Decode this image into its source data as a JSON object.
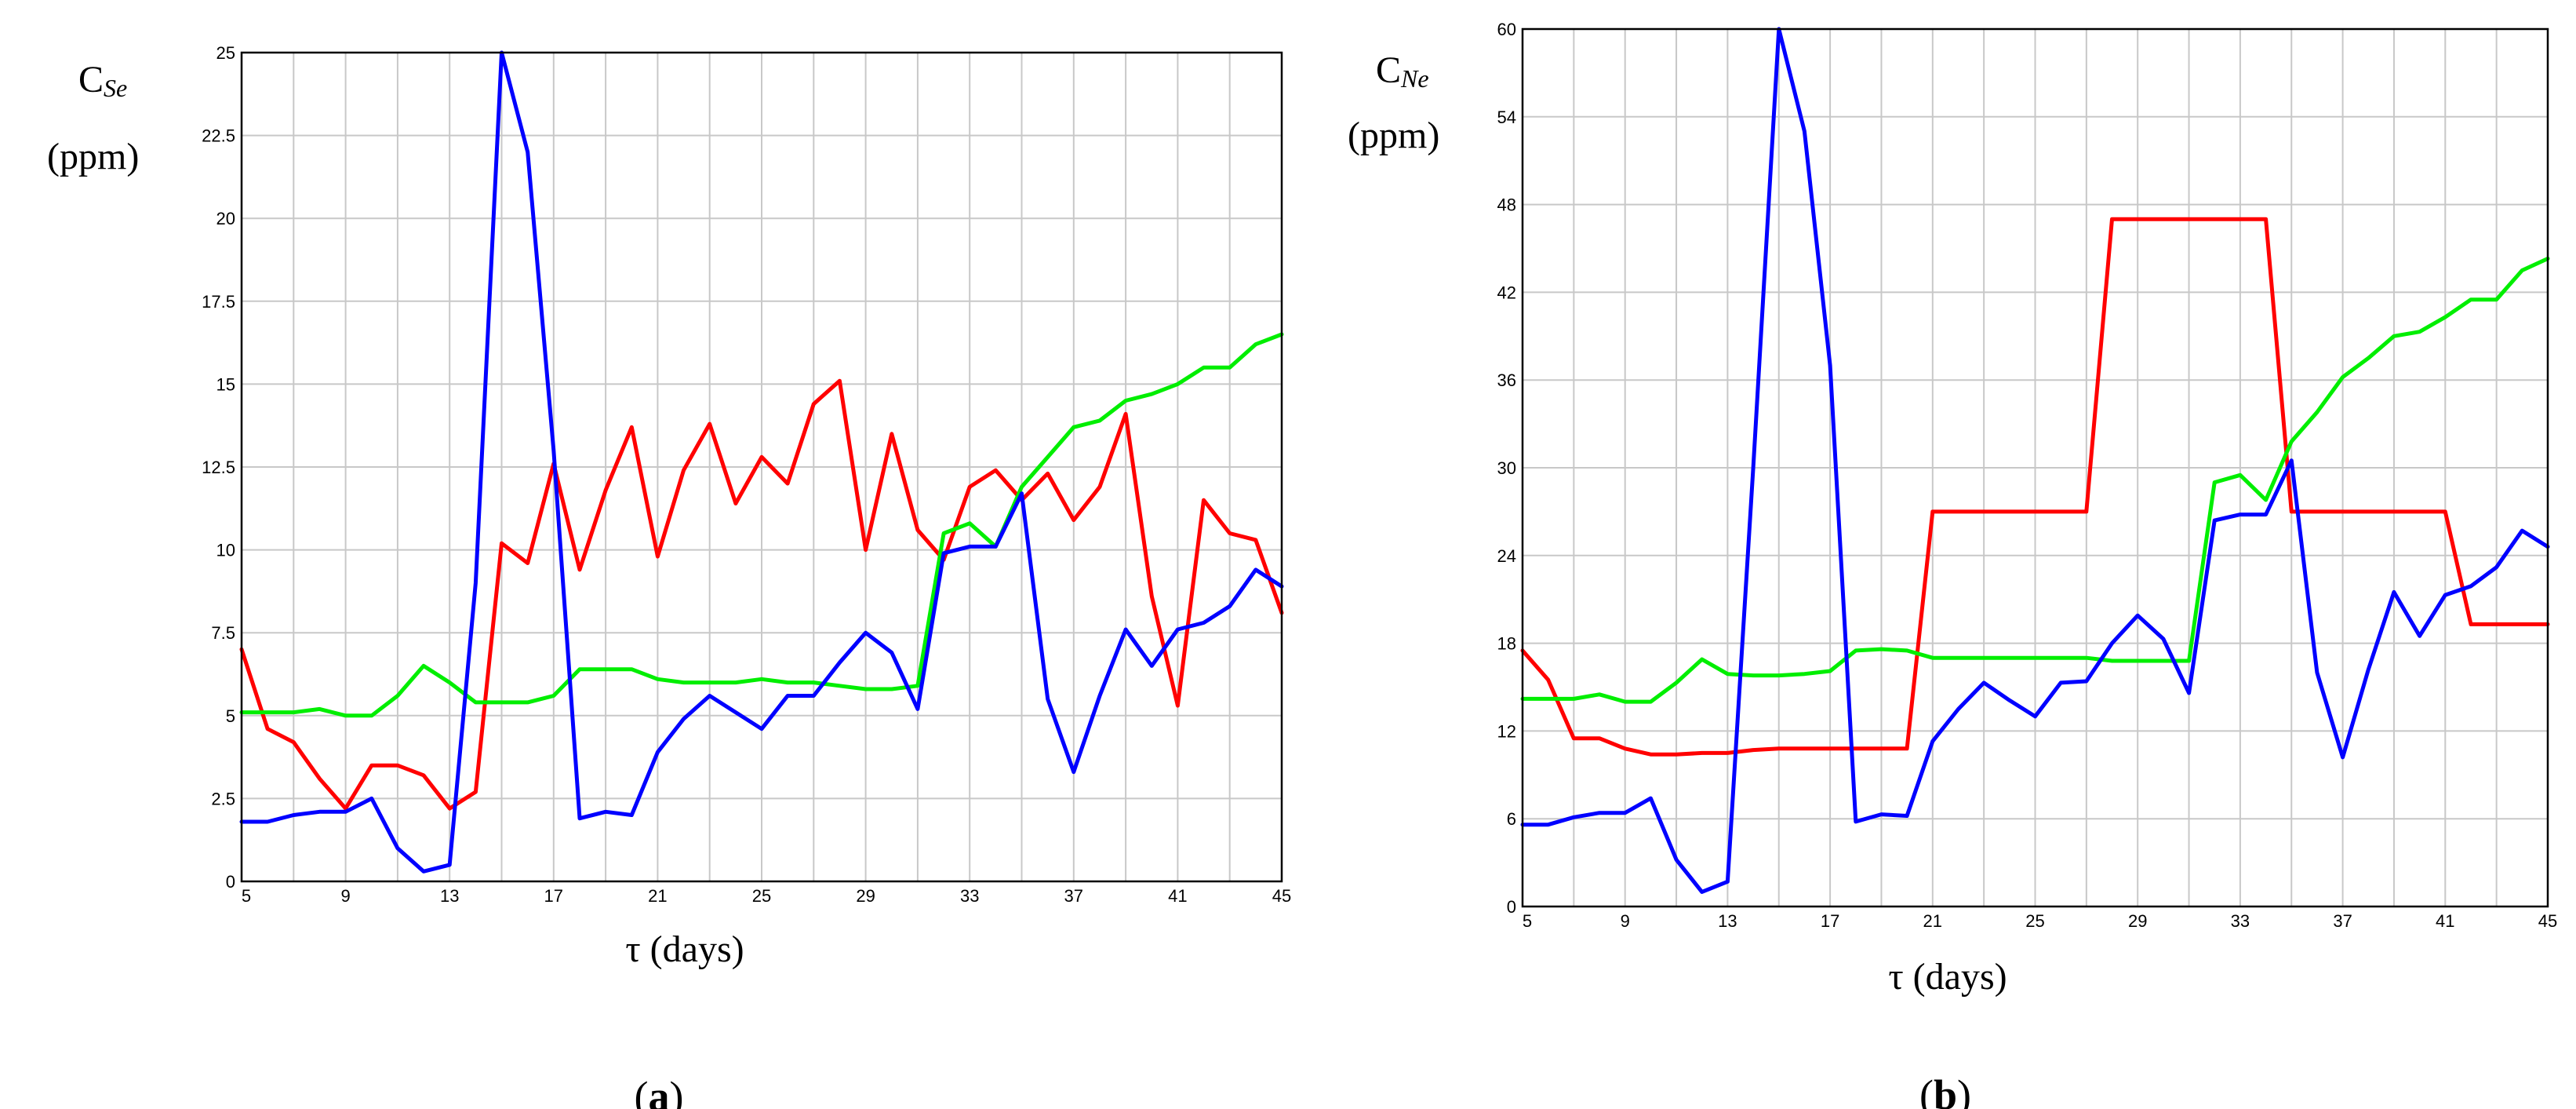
{
  "chart_data": [
    {
      "type": "line",
      "panel_label": "a",
      "ylabel_main": "C",
      "ylabel_sub": "Se",
      "ylabel_unit": "(ppm)",
      "xlabel": "τ (days)",
      "xlim": [
        5,
        45
      ],
      "ylim": [
        0,
        25
      ],
      "x_ticks": [
        "5",
        "9",
        "13",
        "17",
        "21",
        "25",
        "29",
        "33",
        "37",
        "41",
        "45"
      ],
      "y_ticks": [
        "0",
        "2.5",
        "5",
        "7.5",
        "10",
        "12.5",
        "15",
        "17.5",
        "20",
        "22.5",
        "25"
      ],
      "x_tick_values": [
        5,
        9,
        13,
        17,
        21,
        25,
        29,
        33,
        37,
        41,
        45
      ],
      "y_tick_values": [
        0,
        2.5,
        5,
        7.5,
        10,
        12.5,
        15,
        17.5,
        20,
        22.5,
        25
      ],
      "grid": true,
      "series": [
        {
          "color": "#ff0000",
          "x": [
            5,
            6,
            7,
            8,
            9,
            10,
            11,
            12,
            13,
            14,
            15,
            16,
            17,
            18,
            19,
            20,
            21,
            22,
            23,
            24,
            25,
            26,
            27,
            28,
            29,
            30,
            31,
            32,
            33,
            34,
            35,
            36,
            37,
            38,
            39,
            40,
            41,
            42,
            43,
            44,
            45
          ],
          "y": [
            7.0,
            4.6,
            4.2,
            3.1,
            2.2,
            3.5,
            3.5,
            3.2,
            2.2,
            2.7,
            10.2,
            9.6,
            12.6,
            9.4,
            11.8,
            13.7,
            9.8,
            12.4,
            13.8,
            11.4,
            12.8,
            12.0,
            14.4,
            15.1,
            10.0,
            13.5,
            10.6,
            9.7,
            11.9,
            12.4,
            11.5,
            12.3,
            10.9,
            11.9,
            14.1,
            8.6,
            5.3,
            11.5,
            10.5,
            10.3,
            8.1
          ]
        },
        {
          "color": "#00ee00",
          "x": [
            5,
            6,
            7,
            8,
            9,
            10,
            11,
            12,
            13,
            14,
            15,
            16,
            17,
            18,
            19,
            20,
            21,
            22,
            23,
            24,
            25,
            26,
            27,
            28,
            29,
            30,
            31,
            32,
            33,
            34,
            35,
            36,
            37,
            38,
            39,
            40,
            41,
            42,
            43,
            44,
            45
          ],
          "y": [
            5.1,
            5.1,
            5.1,
            5.2,
            5.0,
            5.0,
            5.6,
            6.5,
            6.0,
            5.4,
            5.4,
            5.4,
            5.6,
            6.4,
            6.4,
            6.4,
            6.1,
            6.0,
            6.0,
            6.0,
            6.1,
            6.0,
            6.0,
            5.9,
            5.8,
            5.8,
            5.9,
            10.5,
            10.8,
            10.1,
            11.9,
            12.8,
            13.7,
            13.9,
            14.5,
            14.7,
            15.0,
            15.5,
            15.5,
            16.2,
            16.5
          ]
        },
        {
          "color": "#0000ff",
          "x": [
            5,
            6,
            7,
            8,
            9,
            10,
            11,
            12,
            13,
            14,
            15,
            16,
            17,
            18,
            19,
            20,
            21,
            22,
            23,
            24,
            25,
            26,
            27,
            28,
            29,
            30,
            31,
            32,
            33,
            34,
            35,
            36,
            37,
            38,
            39,
            40,
            41,
            42,
            43,
            44,
            45
          ],
          "y": [
            1.8,
            1.8,
            2.0,
            2.1,
            2.1,
            2.5,
            1.0,
            0.3,
            0.5,
            9.0,
            25.0,
            22.0,
            13.0,
            1.9,
            2.1,
            2.0,
            3.9,
            4.9,
            5.6,
            5.1,
            4.6,
            5.6,
            5.6,
            6.6,
            7.5,
            6.9,
            5.2,
            9.9,
            10.1,
            10.1,
            11.7,
            5.5,
            3.3,
            5.6,
            7.6,
            6.5,
            7.6,
            7.8,
            8.3,
            9.4,
            8.9
          ]
        }
      ]
    },
    {
      "type": "line",
      "panel_label": "b",
      "ylabel_main": "C",
      "ylabel_sub": "Ne",
      "ylabel_unit": "(ppm)",
      "xlabel": "τ (days)",
      "xlim": [
        5,
        45
      ],
      "ylim": [
        0,
        60
      ],
      "x_ticks": [
        "5",
        "9",
        "13",
        "17",
        "21",
        "25",
        "29",
        "33",
        "37",
        "41",
        "45"
      ],
      "y_ticks": [
        "0",
        "6",
        "12",
        "18",
        "24",
        "30",
        "36",
        "42",
        "48",
        "54",
        "60"
      ],
      "x_tick_values": [
        5,
        9,
        13,
        17,
        21,
        25,
        29,
        33,
        37,
        41,
        45
      ],
      "y_tick_values": [
        0,
        6,
        12,
        18,
        24,
        30,
        36,
        42,
        48,
        54,
        60
      ],
      "grid": true,
      "series": [
        {
          "color": "#ff0000",
          "x": [
            5,
            6,
            7,
            8,
            9,
            10,
            11,
            12,
            13,
            14,
            15,
            16,
            17,
            18,
            19,
            20,
            21,
            22,
            23,
            24,
            25,
            26,
            27,
            28,
            29,
            30,
            31,
            32,
            33,
            34,
            35,
            36,
            37,
            38,
            39,
            40,
            41,
            42,
            43,
            44,
            45
          ],
          "y": [
            17.5,
            15.5,
            11.5,
            11.5,
            10.8,
            10.4,
            10.4,
            10.5,
            10.5,
            10.7,
            10.8,
            10.8,
            10.8,
            10.8,
            10.8,
            10.8,
            27.0,
            27.0,
            27.0,
            27.0,
            27.0,
            27.0,
            27.0,
            47.0,
            47.0,
            47.0,
            47.0,
            47.0,
            47.0,
            47.0,
            27.0,
            27.0,
            27.0,
            27.0,
            27.0,
            27.0,
            27.0,
            19.3,
            19.3,
            19.3,
            19.3
          ]
        },
        {
          "color": "#00ee00",
          "x": [
            5,
            6,
            7,
            8,
            9,
            10,
            11,
            12,
            13,
            14,
            15,
            16,
            17,
            18,
            19,
            20,
            21,
            22,
            23,
            24,
            25,
            26,
            27,
            28,
            29,
            30,
            31,
            32,
            33,
            34,
            35,
            36,
            37,
            38,
            39,
            40,
            41,
            42,
            43,
            44,
            45
          ],
          "y": [
            14.2,
            14.2,
            14.2,
            14.5,
            14.0,
            14.0,
            15.3,
            16.9,
            15.9,
            15.8,
            15.8,
            15.9,
            16.1,
            17.5,
            17.6,
            17.5,
            17.0,
            17.0,
            17.0,
            17.0,
            17.0,
            17.0,
            17.0,
            16.8,
            16.8,
            16.8,
            16.8,
            29.0,
            29.5,
            27.8,
            31.8,
            33.8,
            36.2,
            37.5,
            39.0,
            39.3,
            40.3,
            41.5,
            41.5,
            43.5,
            44.3
          ]
        },
        {
          "color": "#0000ff",
          "x": [
            5,
            6,
            7,
            8,
            9,
            10,
            11,
            12,
            13,
            14,
            15,
            16,
            17,
            18,
            19,
            20,
            21,
            22,
            23,
            24,
            25,
            26,
            27,
            28,
            29,
            30,
            31,
            32,
            33,
            34,
            35,
            36,
            37,
            38,
            39,
            40,
            41,
            42,
            43,
            44,
            45
          ],
          "y": [
            5.6,
            5.6,
            6.1,
            6.4,
            6.4,
            7.4,
            3.2,
            1.0,
            1.7,
            30.0,
            60.0,
            53.0,
            37.0,
            5.8,
            6.3,
            6.2,
            11.3,
            13.5,
            15.3,
            14.1,
            13.0,
            15.3,
            15.4,
            18.0,
            19.9,
            18.3,
            14.6,
            26.4,
            26.8,
            26.8,
            30.5,
            16.0,
            10.2,
            16.2,
            21.5,
            18.5,
            21.3,
            21.9,
            23.2,
            25.7,
            24.6
          ]
        }
      ]
    }
  ]
}
